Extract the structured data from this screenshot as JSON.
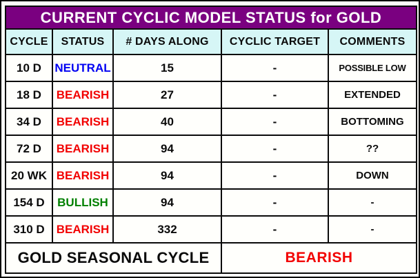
{
  "title": "CURRENT CYCLIC MODEL STATUS for GOLD",
  "columns": [
    "CYCLE",
    "STATUS",
    "# DAYS ALONG",
    "CYCLIC TARGET",
    "COMMENTS"
  ],
  "rows": [
    {
      "cycle": "10 D",
      "status": "NEUTRAL",
      "status_color": "#0000f2",
      "days": "15",
      "target": "-",
      "comments": "POSSIBLE LOW"
    },
    {
      "cycle": "18 D",
      "status": "BEARISH",
      "status_color": "#f20000",
      "days": "27",
      "target": "-",
      "comments": "EXTENDED"
    },
    {
      "cycle": "34 D",
      "status": "BEARISH",
      "status_color": "#f20000",
      "days": "40",
      "target": "-",
      "comments": "BOTTOMING"
    },
    {
      "cycle": "72 D",
      "status": "BEARISH",
      "status_color": "#f20000",
      "days": "94",
      "target": "-",
      "comments": "??"
    },
    {
      "cycle": "20 WK",
      "status": "BEARISH",
      "status_color": "#f20000",
      "days": "94",
      "target": "-",
      "comments": "DOWN"
    },
    {
      "cycle": "154 D",
      "status": "BULLISH",
      "status_color": "#008000",
      "days": "94",
      "target": "-",
      "comments": "-"
    },
    {
      "cycle": "310 D",
      "status": "BEARISH",
      "status_color": "#f20000",
      "days": "332",
      "target": "-",
      "comments": "-"
    }
  ],
  "footer": {
    "label": "GOLD SEASONAL CYCLE",
    "value": "BEARISH",
    "value_color": "#f20000"
  },
  "colors": {
    "title_bg": "#7a0080",
    "title_text": "#ffffff",
    "header_bg": "#d6f6f6",
    "grid_line": "#0a0a0a",
    "neutral": "#0000f2",
    "bearish": "#f20000",
    "bullish": "#008000"
  }
}
